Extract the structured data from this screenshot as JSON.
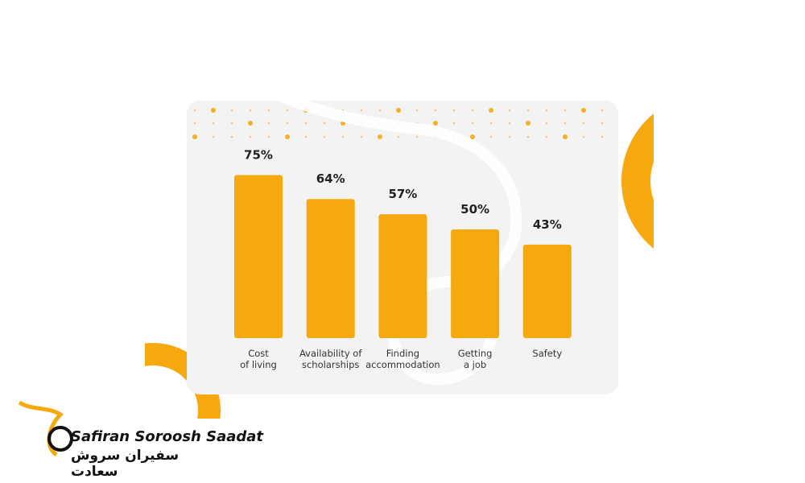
{
  "chart_data": {
    "type": "bar",
    "categories": [
      "Cost\nof living",
      "Availability of\nscholarships",
      "Finding\naccommodation",
      "Getting\na job",
      "Safety"
    ],
    "values": [
      75,
      64,
      57,
      50,
      43
    ],
    "value_labels": [
      "75%",
      "64%",
      "57%",
      "50%",
      "43%"
    ],
    "color": "#f6a90e"
  },
  "brand": {
    "name": "Safiran Soroosh Saadat",
    "name_fa": "سفیران سروش سعادت"
  }
}
